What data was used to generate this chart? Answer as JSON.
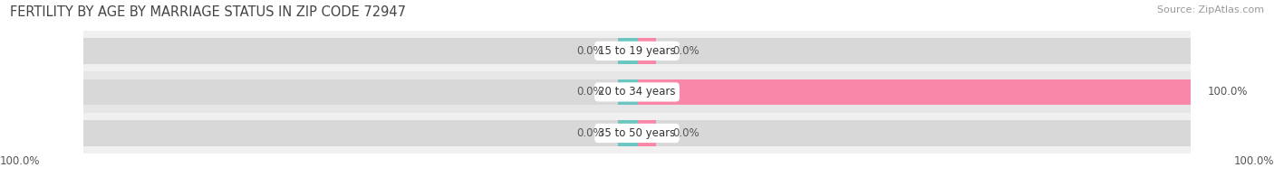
{
  "title": "FERTILITY BY AGE BY MARRIAGE STATUS IN ZIP CODE 72947",
  "source": "Source: ZipAtlas.com",
  "categories": [
    "15 to 19 years",
    "20 to 34 years",
    "35 to 50 years"
  ],
  "married_values": [
    0.0,
    0.0,
    0.0
  ],
  "unmarried_values": [
    0.0,
    100.0,
    0.0
  ],
  "married_left_labels": [
    "0.0%",
    "0.0%",
    "0.0%"
  ],
  "unmarried_right_labels": [
    "0.0%",
    "100.0%",
    "0.0%"
  ],
  "bottom_left_label": "100.0%",
  "bottom_right_label": "100.0%",
  "married_color": "#6cc5c1",
  "unmarried_color": "#f887a8",
  "row_bg_even": "#f0f0f0",
  "row_bg_odd": "#e6e6e6",
  "bar_bg_color": "#d8d8d8",
  "title_fontsize": 10.5,
  "label_fontsize": 8.5,
  "legend_fontsize": 9,
  "source_fontsize": 8,
  "max_val": 100.0
}
